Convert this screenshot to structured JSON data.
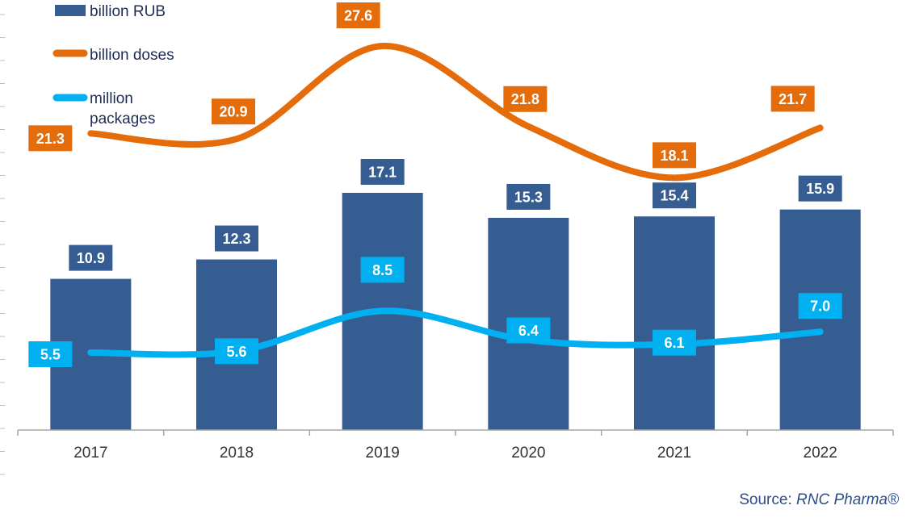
{
  "chart_data": {
    "type": "bar",
    "categories": [
      "2017",
      "2018",
      "2019",
      "2020",
      "2021",
      "2022"
    ],
    "series": [
      {
        "name": "billion RUB",
        "type": "bar",
        "color": "#365d91",
        "values": [
          10.9,
          12.3,
          17.1,
          15.3,
          15.4,
          15.9
        ]
      },
      {
        "name": "billion doses",
        "type": "line",
        "color": "#e46c0a",
        "values": [
          21.3,
          20.9,
          27.6,
          21.8,
          18.1,
          21.7
        ]
      },
      {
        "name": "million packages",
        "type": "line",
        "color": "#00b0f0",
        "values": [
          5.5,
          5.6,
          8.5,
          6.4,
          6.1,
          7.0
        ]
      }
    ],
    "legend": {
      "position": "top-left",
      "items": [
        "billion RUB",
        "billion doses",
        "million packages"
      ]
    },
    "data_labels": true,
    "grid": false
  },
  "source": {
    "prefix": "Source:",
    "name": "RNC Pharma®"
  }
}
